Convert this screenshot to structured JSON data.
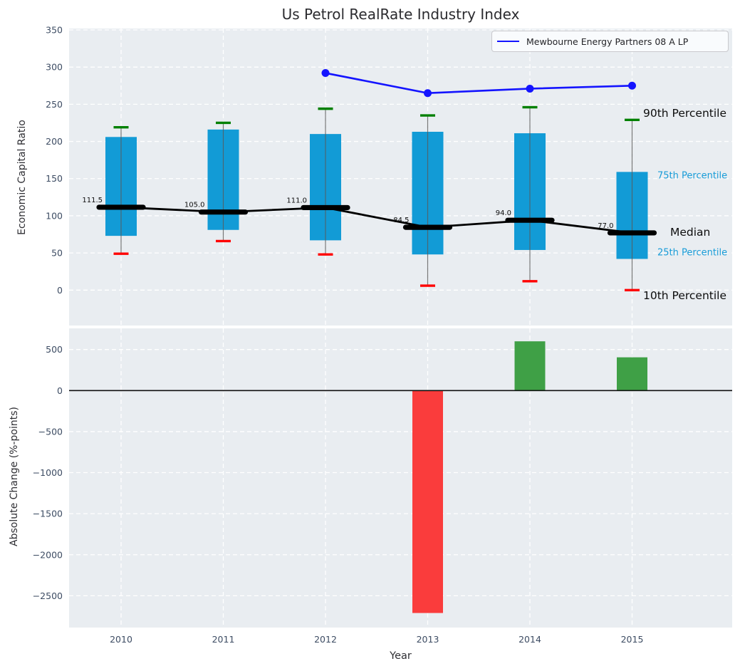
{
  "title": "Us Petrol RealRate Industry Index",
  "legend": {
    "label": "Mewbourne Energy Partners 08 A LP"
  },
  "top_axis": {
    "ylabel": "Economic Capital Ratio",
    "yticks": [
      350,
      300,
      250,
      200,
      150,
      100,
      50,
      0
    ],
    "ytick_labels": [
      "350",
      "300",
      "250",
      "200",
      "150",
      "100",
      "50",
      "0"
    ]
  },
  "bottom_axis": {
    "ylabel": "Absolute Change (%-points)",
    "xlabel": "Year",
    "yticks": [
      500,
      0,
      -500,
      -1000,
      -1500,
      -2000,
      -2500
    ],
    "ytick_labels": [
      "500",
      "0",
      "−500",
      "−1000",
      "−1500",
      "−2000",
      "−2500"
    ],
    "xtick_labels": [
      "2010",
      "2011",
      "2012",
      "2013",
      "2014",
      "2015"
    ]
  },
  "annotations": {
    "p90": "90th Percentile",
    "p75": "75th Percentile",
    "median": "Median",
    "p25": "25th Percentile",
    "p10": "10th Percentile"
  },
  "chart_data": [
    {
      "type": "boxplot",
      "title": "Us Petrol RealRate Industry Index",
      "ylabel": "Economic Capital Ratio",
      "categories": [
        "2010",
        "2011",
        "2012",
        "2013",
        "2014",
        "2015"
      ],
      "ylim": [
        -48,
        352
      ],
      "grid": true,
      "legend_position": "upper right",
      "series": [
        {
          "name": "90th Percentile",
          "role": "whisker_high",
          "values": [
            219,
            225,
            244,
            235,
            246,
            229
          ]
        },
        {
          "name": "75th Percentile",
          "role": "box_top",
          "values": [
            206,
            216,
            210,
            213,
            211,
            159
          ]
        },
        {
          "name": "Median",
          "role": "median",
          "values": [
            111.5,
            105.0,
            111.0,
            84.5,
            94.0,
            77.0
          ]
        },
        {
          "name": "25th Percentile",
          "role": "box_bottom",
          "values": [
            73,
            81,
            67,
            48,
            54,
            42
          ]
        },
        {
          "name": "10th Percentile",
          "role": "whisker_low",
          "values": [
            49,
            66,
            48,
            6,
            12,
            0
          ]
        },
        {
          "name": "Mewbourne Energy Partners 08 A LP",
          "type": "line",
          "values": [
            null,
            null,
            292,
            265,
            271,
            275
          ]
        }
      ],
      "median_labels": [
        "111.5",
        "105.0",
        "111.0",
        "84.5",
        "94.0",
        "77.0"
      ]
    },
    {
      "type": "bar",
      "ylabel": "Absolute Change (%-points)",
      "xlabel": "Year",
      "categories": [
        "2010",
        "2011",
        "2012",
        "2013",
        "2014",
        "2015"
      ],
      "values": [
        null,
        null,
        null,
        -2710,
        600,
        405
      ],
      "ylim": [
        -2890,
        760
      ],
      "grid": true
    }
  ],
  "colors": {
    "box_fill": "#129bd6",
    "median": "#000000",
    "series_line": "#1414ff",
    "cap_high": "#008000",
    "cap_low": "#ff0000",
    "whisker": "#5a5a5a",
    "bar_positive": "#3fa046",
    "bar_negative": "#fa3c3c",
    "axes_background": "#e9edf1",
    "grid": "#ffffff",
    "tick_text": "#3d4c63",
    "annotation_blue": "#189cd8",
    "zero_line": "#111111"
  }
}
